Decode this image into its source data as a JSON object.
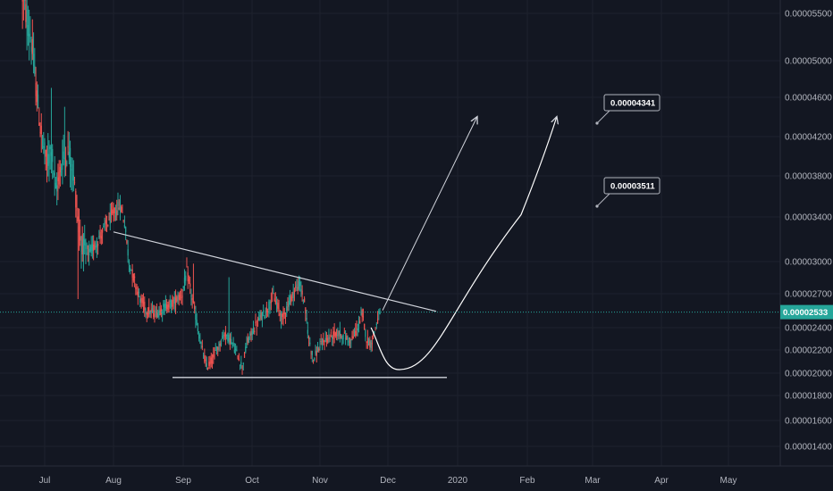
{
  "colors": {
    "background": "#131722",
    "up": "#26a69a",
    "down": "#ef5350",
    "grid": "#1e222d",
    "axis_text": "#b2b5be",
    "current_price": "#26a69a",
    "drawing": "#d1d4dc"
  },
  "chart_data": {
    "type": "candlestick",
    "x_ticks": [
      "Jul",
      "Aug",
      "Sep",
      "Oct",
      "Nov",
      "Dec",
      "2020",
      "Feb",
      "Mar",
      "Apr",
      "May"
    ],
    "y_ticks": [
      "0.00005500",
      "0.00005000",
      "0.00004600",
      "0.00004200",
      "0.00003800",
      "0.00003400",
      "0.00003000",
      "0.00002700",
      "0.00002400",
      "0.00002200",
      "0.00002000",
      "0.00001800",
      "0.00001600",
      "0.00001400"
    ],
    "y_scale": "log",
    "ylim": [
      1.25e-05,
      5.75e-05
    ],
    "current_price": "0.00002533",
    "grid": true,
    "annotations": [
      {
        "label": "0.00004341",
        "price": 4.341e-05
      },
      {
        "label": "0.00003511",
        "price": 3.511e-05
      }
    ],
    "drawings": [
      {
        "type": "descending-trendline",
        "from": [
          "Aug",
          3.26e-05
        ],
        "to": [
          "Dec",
          2.54e-05
        ]
      },
      {
        "type": "support-line",
        "price": 1.96e-05,
        "from": "Sep",
        "to": "2020"
      },
      {
        "type": "arrow-projection",
        "target_month": "2020",
        "target_price": 4.4e-05
      },
      {
        "type": "cup-projection",
        "low": 2.03e-05,
        "target_month": "Feb",
        "target_price": 4.4e-05
      }
    ],
    "candle_summary": {
      "start_high": 5.7e-05,
      "august_peak": 3.52e-05,
      "range_low": 1.96e-05,
      "last_close": 2.533e-05
    }
  }
}
